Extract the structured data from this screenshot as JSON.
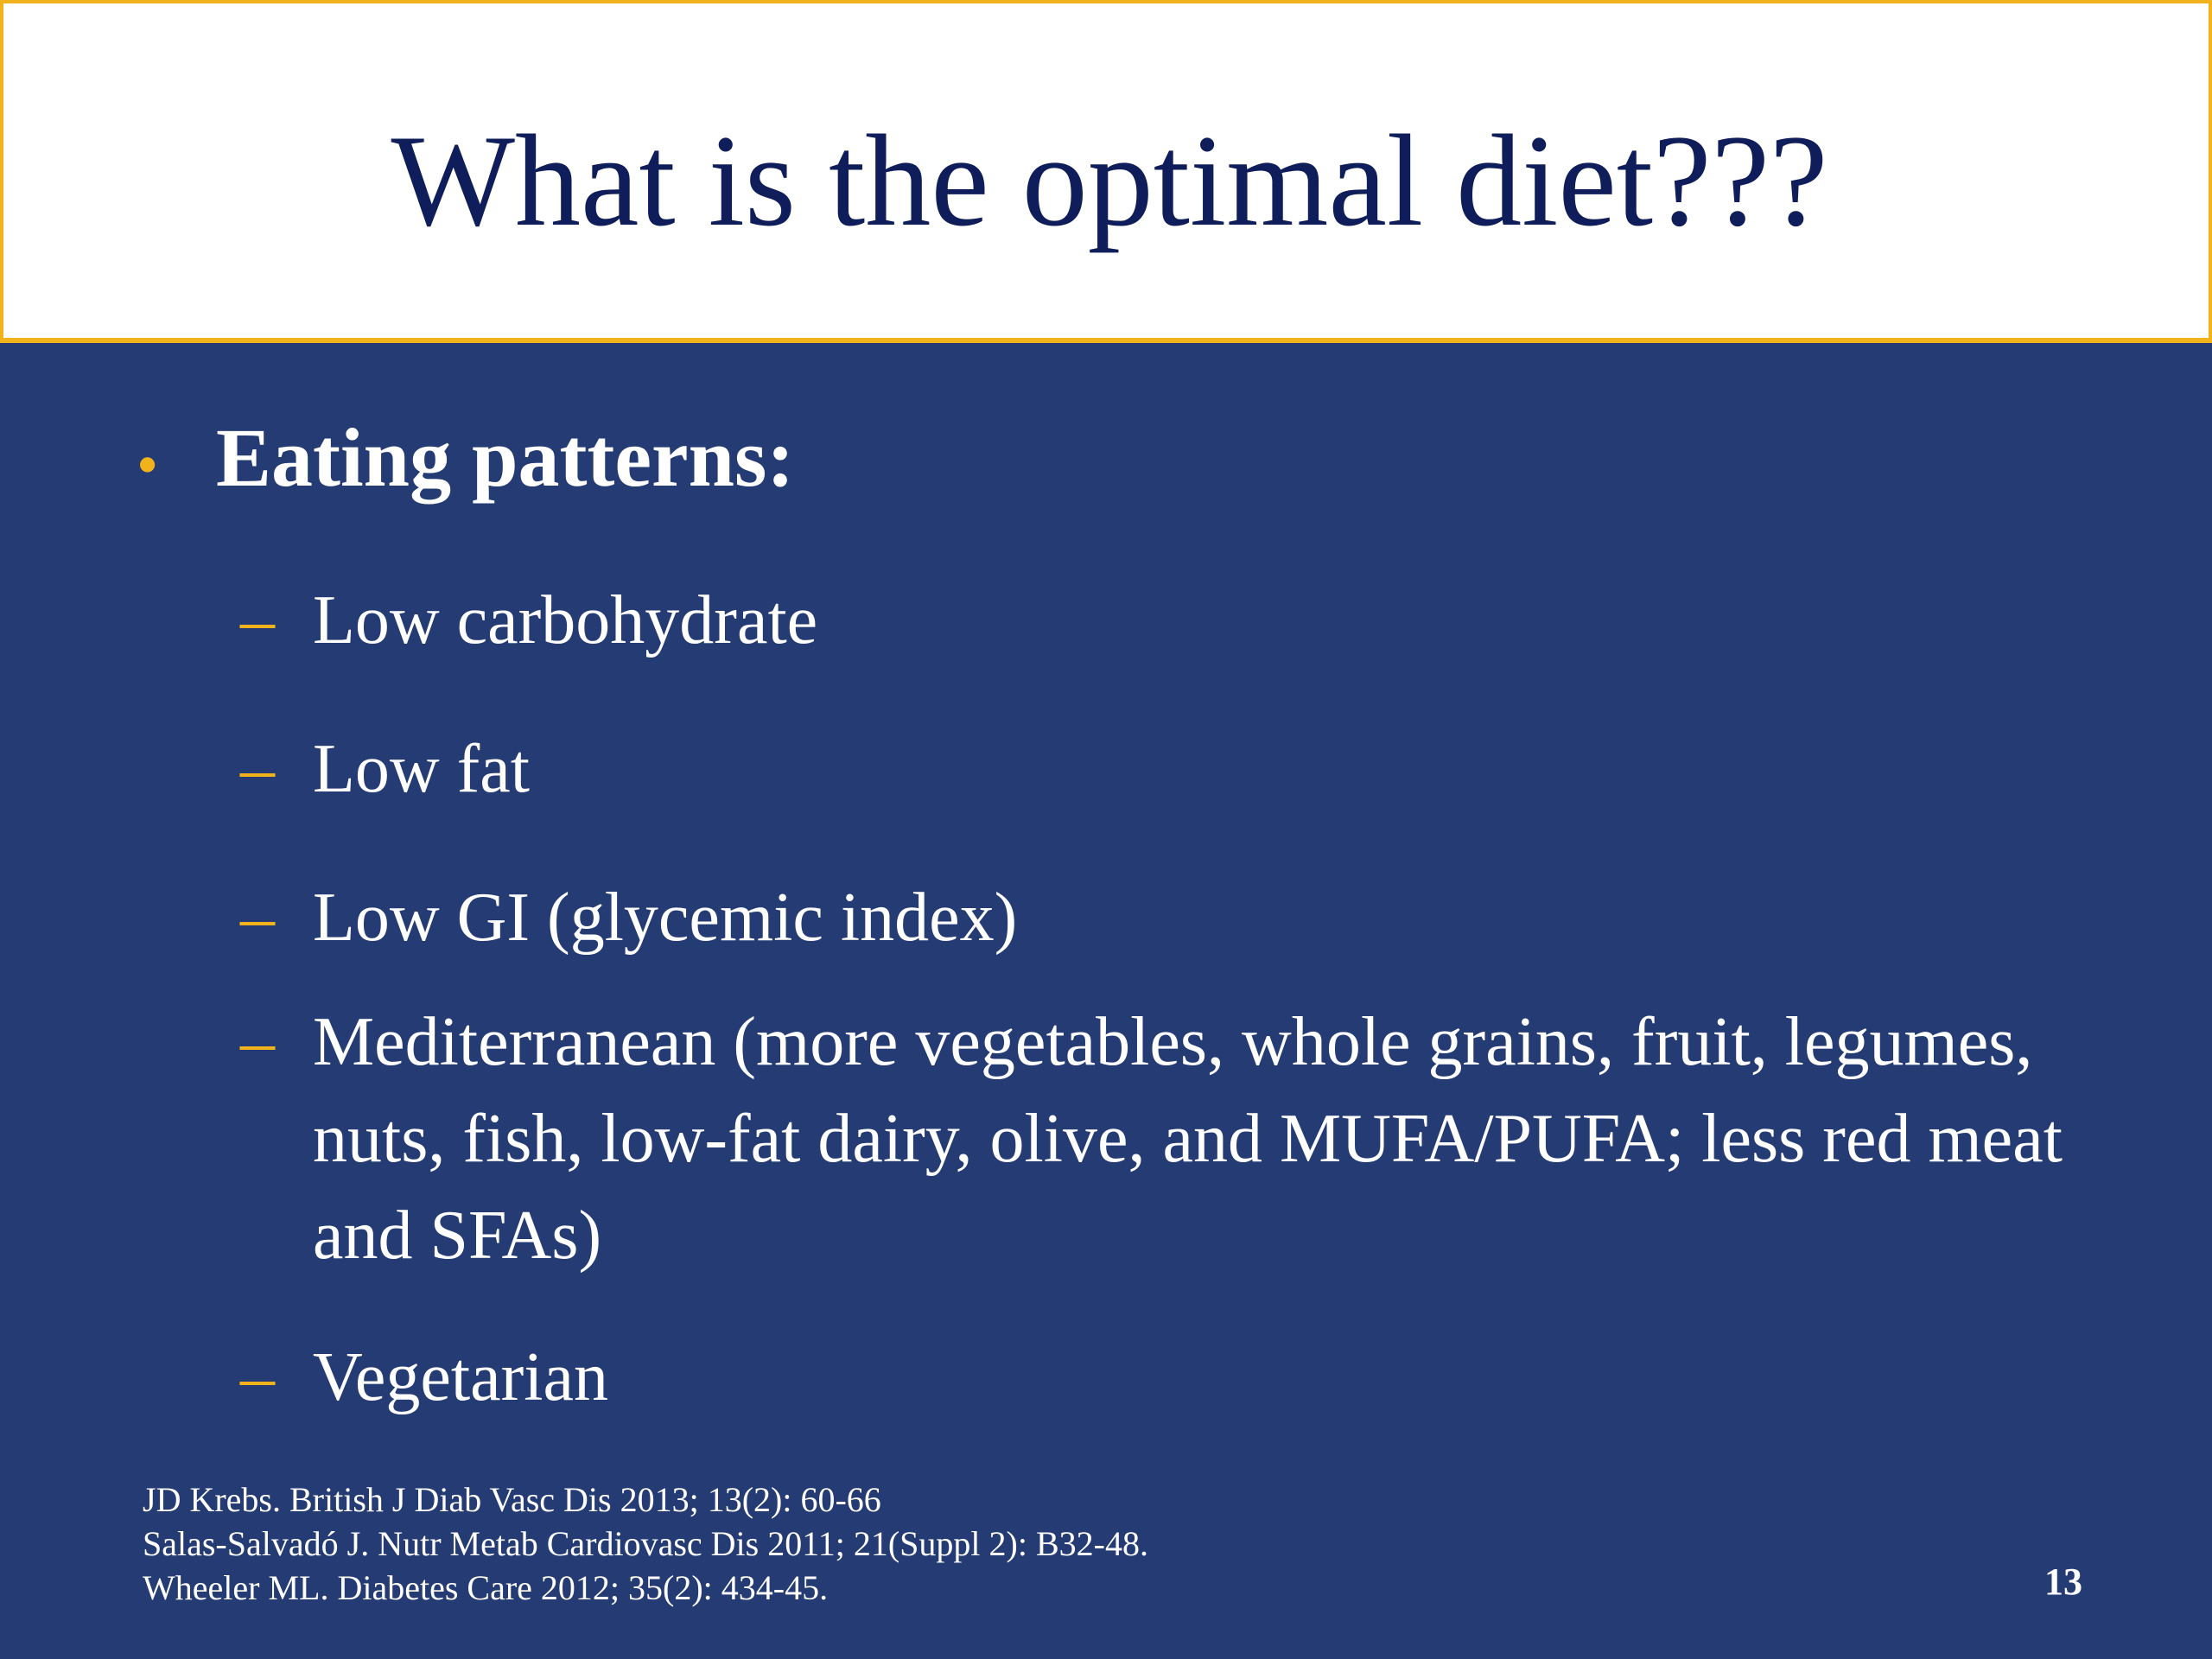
{
  "slide": {
    "title": "What is the optimal diet???",
    "main_bullet": {
      "marker": "•",
      "text": "Eating patterns:"
    },
    "sub_marker": "–",
    "sub_items": [
      "Low carbohydrate",
      "Low fat",
      "Low GI (glycemic index)",
      "Mediterranean (more vegetables, whole grains, fruit, legumes, nuts, fish, low-fat dairy, olive, and MUFA/PUFA; less red meat and SFAs)",
      "Vegetarian"
    ],
    "references": [
      "JD Krebs. British J Diab Vasc Dis 2013; 13(2): 60-66",
      "Salas-Salvadó J. Nutr Metab Cardiovasc Dis 2011; 21(Suppl 2): B32-48.",
      "Wheeler ML. Diabetes Care 2012; 35(2): 434-45."
    ],
    "page_number": "13"
  },
  "colors": {
    "background": "#243b74",
    "title_band": "#ffffff",
    "title_text": "#0f1e5a",
    "accent": "#f2b21c",
    "body_text": "#ffffff"
  }
}
